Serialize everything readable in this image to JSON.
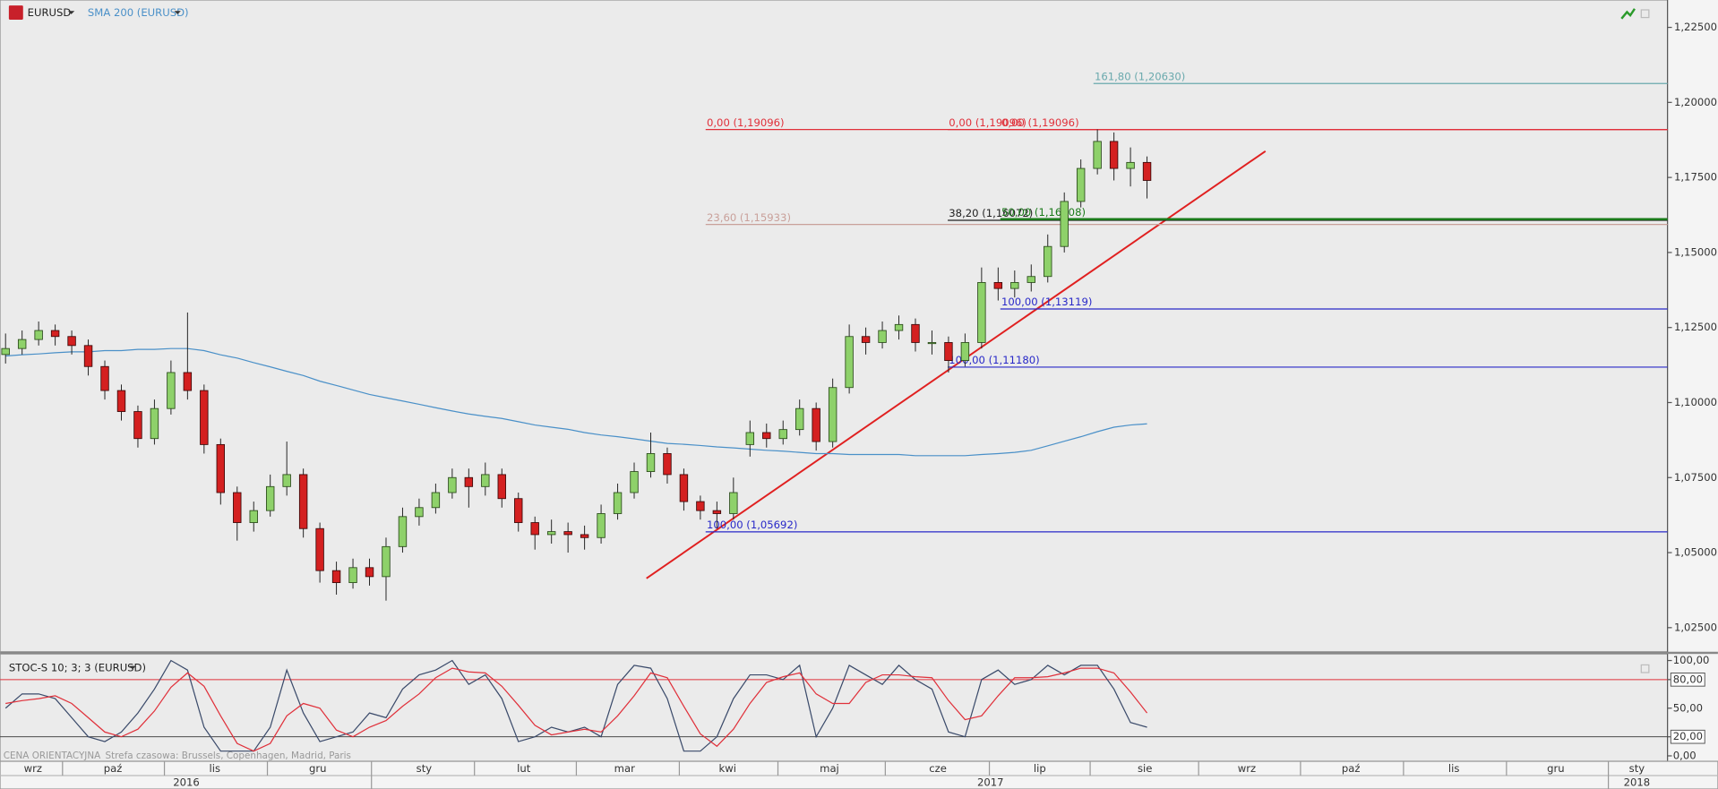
{
  "chart_data": [
    {
      "type": "candlestick",
      "title": "EURUSD",
      "ylim": [
        1.01697,
        1.23412
      ],
      "yticks": [
        {
          "value": 1.025,
          "label": "1,02500"
        },
        {
          "value": 1.05,
          "label": "1,05000"
        },
        {
          "value": 1.075,
          "label": "1,07500"
        },
        {
          "value": 1.1,
          "label": "1,10000"
        },
        {
          "value": 1.125,
          "label": "1,12500"
        },
        {
          "value": 1.15,
          "label": "1,15000"
        },
        {
          "value": 1.175,
          "label": "1,17500"
        },
        {
          "value": 1.2,
          "label": "1,20000"
        },
        {
          "value": 1.225,
          "label": "1,22500"
        }
      ],
      "up_color": "#8ed16a",
      "down_color": "#d42020",
      "ohlc": [
        [
          1.116,
          1.123,
          1.113,
          1.118
        ],
        [
          1.118,
          1.124,
          1.116,
          1.121
        ],
        [
          1.121,
          1.127,
          1.119,
          1.124
        ],
        [
          1.124,
          1.126,
          1.119,
          1.122
        ],
        [
          1.122,
          1.124,
          1.116,
          1.119
        ],
        [
          1.119,
          1.121,
          1.109,
          1.112
        ],
        [
          1.112,
          1.114,
          1.101,
          1.104
        ],
        [
          1.104,
          1.106,
          1.094,
          1.097
        ],
        [
          1.097,
          1.099,
          1.085,
          1.088
        ],
        [
          1.088,
          1.101,
          1.086,
          1.098
        ],
        [
          1.098,
          1.114,
          1.096,
          1.11
        ],
        [
          1.11,
          1.13,
          1.101,
          1.104
        ],
        [
          1.104,
          1.106,
          1.083,
          1.086
        ],
        [
          1.086,
          1.088,
          1.066,
          1.07
        ],
        [
          1.07,
          1.072,
          1.054,
          1.06
        ],
        [
          1.06,
          1.067,
          1.057,
          1.064
        ],
        [
          1.064,
          1.076,
          1.062,
          1.072
        ],
        [
          1.072,
          1.087,
          1.069,
          1.076
        ],
        [
          1.076,
          1.078,
          1.055,
          1.058
        ],
        [
          1.058,
          1.06,
          1.04,
          1.044
        ],
        [
          1.044,
          1.047,
          1.036,
          1.04
        ],
        [
          1.04,
          1.048,
          1.038,
          1.045
        ],
        [
          1.045,
          1.048,
          1.039,
          1.042
        ],
        [
          1.042,
          1.055,
          1.034,
          1.052
        ],
        [
          1.052,
          1.065,
          1.05,
          1.062
        ],
        [
          1.062,
          1.068,
          1.059,
          1.065
        ],
        [
          1.065,
          1.073,
          1.063,
          1.07
        ],
        [
          1.07,
          1.078,
          1.068,
          1.075
        ],
        [
          1.075,
          1.078,
          1.065,
          1.072
        ],
        [
          1.072,
          1.08,
          1.069,
          1.076
        ],
        [
          1.076,
          1.078,
          1.065,
          1.068
        ],
        [
          1.068,
          1.07,
          1.057,
          1.06
        ],
        [
          1.06,
          1.062,
          1.051,
          1.056
        ],
        [
          1.056,
          1.061,
          1.053,
          1.057
        ],
        [
          1.057,
          1.06,
          1.05,
          1.056
        ],
        [
          1.056,
          1.059,
          1.051,
          1.055
        ],
        [
          1.055,
          1.066,
          1.053,
          1.063
        ],
        [
          1.063,
          1.073,
          1.061,
          1.07
        ],
        [
          1.07,
          1.08,
          1.068,
          1.077
        ],
        [
          1.077,
          1.09,
          1.075,
          1.083
        ],
        [
          1.083,
          1.085,
          1.073,
          1.076
        ],
        [
          1.076,
          1.078,
          1.064,
          1.067
        ],
        [
          1.067,
          1.069,
          1.061,
          1.064
        ],
        [
          1.064,
          1.067,
          1.058,
          1.063
        ],
        [
          1.063,
          1.075,
          1.061,
          1.07
        ],
        [
          1.086,
          1.094,
          1.082,
          1.09
        ],
        [
          1.09,
          1.093,
          1.085,
          1.088
        ],
        [
          1.088,
          1.094,
          1.086,
          1.091
        ],
        [
          1.091,
          1.101,
          1.089,
          1.098
        ],
        [
          1.098,
          1.1,
          1.084,
          1.087
        ],
        [
          1.087,
          1.108,
          1.085,
          1.105
        ],
        [
          1.105,
          1.126,
          1.103,
          1.122
        ],
        [
          1.122,
          1.125,
          1.116,
          1.12
        ],
        [
          1.12,
          1.127,
          1.118,
          1.124
        ],
        [
          1.124,
          1.129,
          1.121,
          1.126
        ],
        [
          1.126,
          1.128,
          1.117,
          1.12
        ],
        [
          1.12,
          1.124,
          1.116,
          1.12
        ],
        [
          1.12,
          1.122,
          1.11,
          1.114
        ],
        [
          1.114,
          1.123,
          1.112,
          1.12
        ],
        [
          1.12,
          1.145,
          1.118,
          1.14
        ],
        [
          1.14,
          1.145,
          1.134,
          1.138
        ],
        [
          1.138,
          1.144,
          1.135,
          1.14
        ],
        [
          1.14,
          1.146,
          1.137,
          1.142
        ],
        [
          1.142,
          1.156,
          1.14,
          1.152
        ],
        [
          1.152,
          1.17,
          1.15,
          1.167
        ],
        [
          1.167,
          1.181,
          1.165,
          1.178
        ],
        [
          1.178,
          1.191,
          1.176,
          1.187
        ],
        [
          1.187,
          1.19,
          1.174,
          1.178
        ],
        [
          1.178,
          1.185,
          1.172,
          1.18
        ],
        [
          1.18,
          1.182,
          1.168,
          1.174
        ]
      ],
      "series": [
        {
          "name": "SMA 200 (EURUSD)",
          "color": "#4a90c8",
          "values": [
            1.1155,
            1.1159,
            1.1162,
            1.1166,
            1.1169,
            1.1169,
            1.1173,
            1.1173,
            1.1177,
            1.1177,
            1.118,
            1.118,
            1.1173,
            1.1159,
            1.1148,
            1.1133,
            1.1119,
            1.1104,
            1.109,
            1.1071,
            1.1057,
            1.1042,
            1.1027,
            1.1016,
            1.1005,
            1.0994,
            1.0983,
            1.0972,
            1.0962,
            1.0954,
            1.0947,
            1.0936,
            1.0925,
            1.0918,
            1.0911,
            1.09,
            1.0892,
            1.0886,
            1.0879,
            1.0871,
            1.0864,
            1.0861,
            1.0857,
            1.0852,
            1.0849,
            1.0845,
            1.0841,
            1.0838,
            1.0834,
            1.083,
            1.083,
            1.0827,
            1.0827,
            1.0827,
            1.0827,
            1.0823,
            1.0823,
            1.0823,
            1.0823,
            1.0827,
            1.083,
            1.0834,
            1.0841,
            1.0856,
            1.0871,
            1.0886,
            1.0903,
            1.0918,
            1.0925,
            1.0929
          ]
        }
      ],
      "levels": [
        {
          "label": "161,80 (1,20630)",
          "value": 1.2063,
          "color": "#6aa9ad"
        },
        {
          "label": "0,00 (1,19096)",
          "value": 1.19096,
          "color": "#e0303a"
        },
        {
          "label": "0,00 (1,19096)",
          "value": 1.19096,
          "color": "#e0303a"
        },
        {
          "label": "0,00 (1,19096)",
          "value": 1.19096,
          "color": "#e0303a"
        },
        {
          "label": "23,60 (1,15933)",
          "value": 1.15933,
          "color": "#c9a09a"
        },
        {
          "label": "38,20 (1,16072)",
          "value": 1.16072,
          "color": "#222222"
        },
        {
          "label": "50,00 (1,16108)",
          "value": 1.16108,
          "color": "#1a7a1a"
        },
        {
          "label": "100,00 (1,13119)",
          "value": 1.13119,
          "color": "#2828c8"
        },
        {
          "label": "100,00 (1,11180)",
          "value": 1.1118,
          "color": "#2828c8"
        },
        {
          "label": "100,00 (1,05692)",
          "value": 1.05692,
          "color": "#2828c8"
        }
      ]
    },
    {
      "type": "line",
      "title": "STOC-S 10; 3; 3 (EURUSD)",
      "ylim": [
        -5.7,
        106.9
      ],
      "yticks": [
        {
          "value": 0,
          "label": "0,00"
        },
        {
          "value": 20,
          "label": "20,00"
        },
        {
          "value": 50,
          "label": "50,00"
        },
        {
          "value": 80,
          "label": "80,00"
        },
        {
          "value": 100,
          "label": "100,00"
        }
      ],
      "bands": [
        {
          "value": 80,
          "color": "#e0303a"
        },
        {
          "value": 20,
          "color": "#333333"
        }
      ],
      "series": [
        {
          "color": "#3a4a6a",
          "values": [
            50,
            65,
            65,
            60,
            40,
            20,
            15,
            25,
            45,
            70,
            100,
            90,
            30,
            5,
            5,
            5,
            30,
            90,
            45,
            15,
            20,
            25,
            45,
            40,
            70,
            85,
            90,
            100,
            75,
            85,
            60,
            15,
            20,
            30,
            25,
            30,
            20,
            75,
            95,
            92,
            60,
            5,
            5,
            20,
            60,
            85,
            85,
            80,
            95,
            20,
            50,
            95,
            85,
            75,
            95,
            80,
            70,
            25,
            20,
            80,
            90,
            75,
            80,
            95,
            85,
            95,
            95,
            70,
            35,
            30
          ]
        },
        {
          "color": "#e0303a",
          "values": [
            55,
            58,
            60,
            63,
            55,
            40,
            25,
            20,
            28,
            47,
            72,
            87,
            73,
            42,
            13,
            5,
            13,
            42,
            55,
            50,
            27,
            20,
            30,
            37,
            52,
            65,
            82,
            92,
            88,
            87,
            73,
            53,
            32,
            22,
            25,
            28,
            25,
            42,
            63,
            87,
            82,
            52,
            23,
            10,
            28,
            55,
            77,
            83,
            87,
            65,
            55,
            55,
            77,
            85,
            85,
            83,
            82,
            58,
            38,
            42,
            63,
            82,
            82,
            83,
            87,
            92,
            92,
            87,
            67,
            45
          ]
        }
      ]
    }
  ],
  "footer": {
    "note": "CENA ORIENTACYJNA",
    "timezone": "Strefa czasowa: Brussels, Copenhagen, Madrid, Paris"
  },
  "time_axis": {
    "months": [
      "wrz",
      "paź",
      "lis",
      "gru",
      "sty",
      "lut",
      "mar",
      "kwi",
      "maj",
      "cze",
      "lip",
      "sie",
      "wrz",
      "paź",
      "lis",
      "gru",
      "sty"
    ],
    "years": [
      "2016",
      "2017",
      "2018"
    ]
  }
}
